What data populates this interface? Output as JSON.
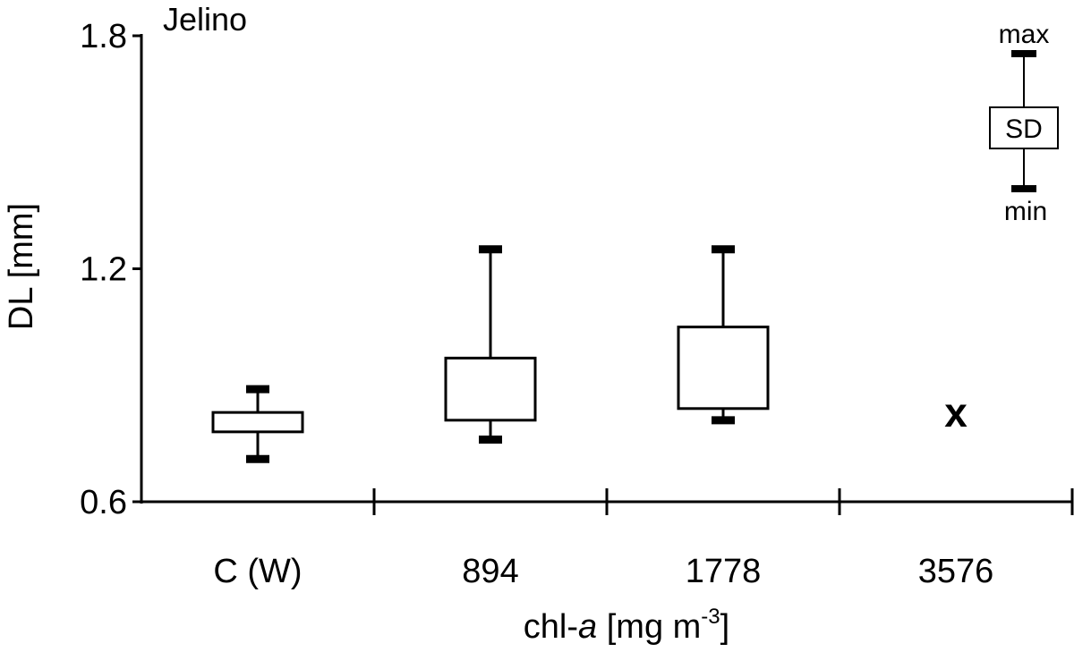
{
  "chart_data": {
    "type": "box",
    "title": "Jelino",
    "ylabel": "DL [mm]",
    "xlabel": {
      "main": "chl-",
      "italic": "a",
      "units": " [mg m",
      "sup": "-3",
      "close": "]"
    },
    "ylim": [
      0.6,
      1.8
    ],
    "yticks": [
      0.6,
      1.2,
      1.8
    ],
    "ytick_labels": [
      "0.6",
      "1.2",
      "1.8"
    ],
    "categories": [
      "C (W)",
      "894",
      "1778",
      "3576"
    ],
    "boxes": [
      {
        "category": "C (W)",
        "min": 0.71,
        "sd_low": 0.78,
        "sd_high": 0.83,
        "max": 0.89
      },
      {
        "category": "894",
        "min": 0.76,
        "sd_low": 0.81,
        "sd_high": 0.97,
        "max": 1.25
      },
      {
        "category": "1778",
        "min": 0.81,
        "sd_low": 0.84,
        "sd_high": 1.05,
        "max": 1.25
      },
      {
        "category": "3576",
        "missing": true,
        "marker": "x",
        "marker_y": 0.83
      }
    ],
    "legend": {
      "position": "top-right",
      "max_label": "max",
      "box_label": "SD",
      "min_label": "min"
    }
  }
}
